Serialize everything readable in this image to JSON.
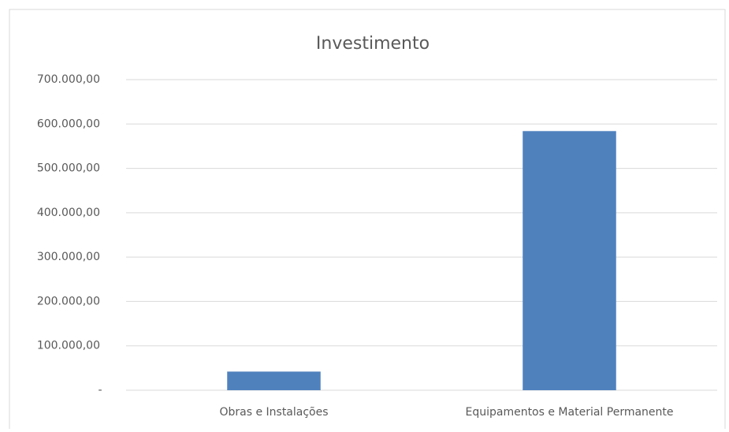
{
  "chart_data": {
    "type": "bar",
    "title": "Investimento",
    "categories": [
      "Obras e Instalações",
      "Equipamentos e Material Permanente"
    ],
    "values": [
      42000,
      584000
    ],
    "color": "#4f81bd",
    "ylim": [
      0,
      700000
    ],
    "yticks": [
      {
        "value": 0,
        "label": "-"
      },
      {
        "value": 100000,
        "label": "100.000,00"
      },
      {
        "value": 200000,
        "label": "200.000,00"
      },
      {
        "value": 300000,
        "label": "300.000,00"
      },
      {
        "value": 400000,
        "label": "400.000,00"
      },
      {
        "value": 500000,
        "label": "500.000,00"
      },
      {
        "value": 600000,
        "label": "600.000,00"
      },
      {
        "value": 700000,
        "label": "700.000,00"
      }
    ],
    "grid": true
  }
}
